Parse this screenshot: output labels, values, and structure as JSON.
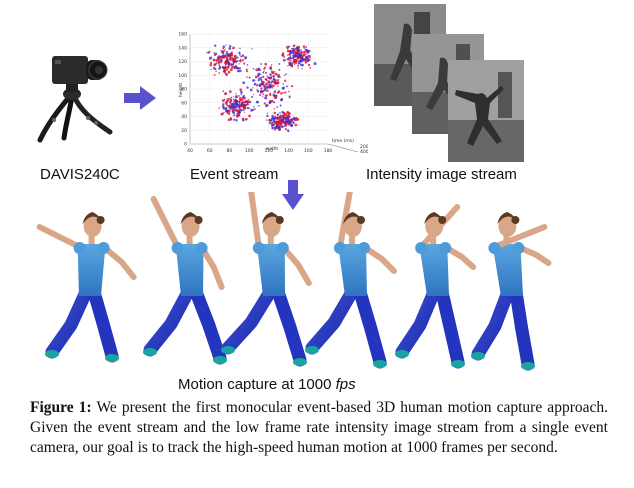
{
  "figure": {
    "camera_label": "DAVIS240C",
    "event_label": "Event stream",
    "intensity_label": "Intensity image stream",
    "motion_label_prefix": "Motion capture at 1000 ",
    "motion_label_unit": "fps",
    "event_plot": {
      "y_axis_label": "height",
      "x_axis_label": "width",
      "t_axis_label": "time (ms)",
      "y_ticks": [
        "0",
        "20",
        "40",
        "60",
        "80",
        "100",
        "120",
        "140",
        "160"
      ],
      "x_ticks": [
        "40",
        "60",
        "80",
        "100",
        "120",
        "140",
        "160",
        "180"
      ],
      "t_ticks": [
        "200",
        "400"
      ],
      "colors": {
        "positive": "#e0102a",
        "negative": "#3a2fd8"
      }
    },
    "arrow_color": "#5a52cc"
  },
  "caption": {
    "label": "Figure 1:",
    "text": " We present the first monocular event-based 3D human motion capture approach. Given the event stream and the low frame rate intensity image stream from a single event camera, our goal is to track the high-speed human motion at 1000 frames per second."
  }
}
